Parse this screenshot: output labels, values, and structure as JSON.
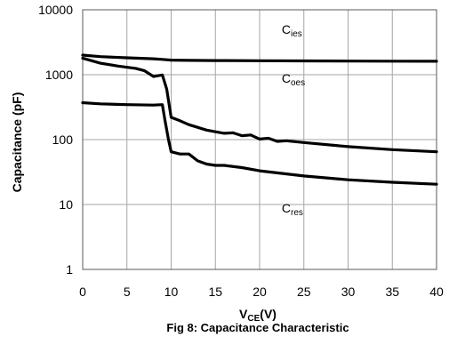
{
  "chart_data": {
    "type": "line",
    "title": "Fig 8: Capacitance Characteristic",
    "xlabel_main": "V",
    "xlabel_sub": "CE",
    "xlabel_tail": "(V)",
    "ylabel": "Capacitance (pF)",
    "xlim": [
      0,
      40
    ],
    "ylim": [
      1,
      10000
    ],
    "yscale": "log",
    "x_ticks": [
      "0",
      "5",
      "10",
      "15",
      "20",
      "25",
      "30",
      "35",
      "40"
    ],
    "y_ticks": [
      "1",
      "10",
      "100",
      "1000",
      "10000"
    ],
    "grid": true,
    "series": [
      {
        "name": "Cies",
        "label_main": "C",
        "label_sub": "ies",
        "points": [
          [
            0,
            2000
          ],
          [
            2,
            1900
          ],
          [
            5,
            1820
          ],
          [
            8,
            1760
          ],
          [
            9,
            1720
          ],
          [
            10,
            1680
          ],
          [
            12,
            1660
          ],
          [
            15,
            1650
          ],
          [
            20,
            1640
          ],
          [
            25,
            1630
          ],
          [
            30,
            1620
          ],
          [
            35,
            1615
          ],
          [
            40,
            1610
          ]
        ]
      },
      {
        "name": "Coes",
        "label_main": "C",
        "label_sub": "oes",
        "points": [
          [
            0,
            1800
          ],
          [
            2,
            1500
          ],
          [
            4,
            1360
          ],
          [
            6,
            1250
          ],
          [
            7,
            1150
          ],
          [
            8,
            940
          ],
          [
            9,
            990
          ],
          [
            9.5,
            600
          ],
          [
            10,
            220
          ],
          [
            11,
            195
          ],
          [
            12,
            170
          ],
          [
            14,
            140
          ],
          [
            15,
            132
          ],
          [
            16,
            125
          ],
          [
            17,
            127
          ],
          [
            18,
            115
          ],
          [
            19,
            118
          ],
          [
            20,
            102
          ],
          [
            21,
            105
          ],
          [
            22,
            94
          ],
          [
            23,
            96
          ],
          [
            25,
            90
          ],
          [
            30,
            78
          ],
          [
            35,
            70
          ],
          [
            40,
            65
          ]
        ]
      },
      {
        "name": "Cres",
        "label_main": "C",
        "label_sub": "res",
        "points": [
          [
            0,
            370
          ],
          [
            2,
            355
          ],
          [
            5,
            345
          ],
          [
            8,
            340
          ],
          [
            9,
            345
          ],
          [
            9.3,
            200
          ],
          [
            9.7,
            100
          ],
          [
            10,
            65
          ],
          [
            11,
            60
          ],
          [
            12,
            60
          ],
          [
            13,
            47
          ],
          [
            14,
            42
          ],
          [
            15,
            40
          ],
          [
            16,
            40
          ],
          [
            18,
            37
          ],
          [
            20,
            33
          ],
          [
            25,
            27.5
          ],
          [
            30,
            24
          ],
          [
            35,
            22
          ],
          [
            40,
            20.5
          ]
        ]
      }
    ]
  },
  "annotations": [
    {
      "main": "C",
      "sub": "ies",
      "x": 22.5,
      "y": 4300
    },
    {
      "main": "C",
      "sub": "oes",
      "x": 22.5,
      "y": 750
    },
    {
      "main": "C",
      "sub": "res",
      "x": 22.5,
      "y": 7.5
    }
  ]
}
